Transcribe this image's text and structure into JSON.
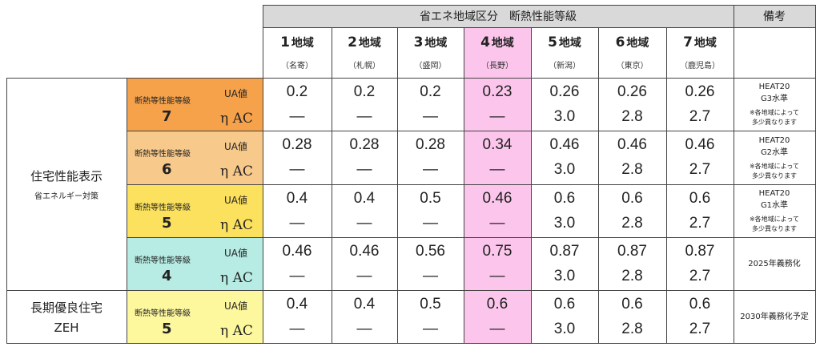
{
  "header": {
    "zone_title": "省エネ地域区分　断熱性能等級",
    "remarks_title": "備考"
  },
  "regions": [
    {
      "num": "1",
      "unit": "地域",
      "city": "（名寄）"
    },
    {
      "num": "2",
      "unit": "地域",
      "city": "（札幌）"
    },
    {
      "num": "3",
      "unit": "地域",
      "city": "（盛岡）"
    },
    {
      "num": "4",
      "unit": "地域",
      "city": "（長野）"
    },
    {
      "num": "5",
      "unit": "地域",
      "city": "（新潟）"
    },
    {
      "num": "6",
      "unit": "地域",
      "city": "（東京）"
    },
    {
      "num": "7",
      "unit": "地域",
      "city": "（鹿児島）"
    }
  ],
  "categories": [
    {
      "main": "住宅性能表示",
      "sub": "省エネルギー対策"
    },
    {
      "main": "長期優良住宅",
      "sub": "ZEH"
    }
  ],
  "rows": [
    {
      "grade_label": "断熱等性能等級",
      "grade": "7",
      "ua_label": "UA値",
      "eta_label": "η AC",
      "color": "#f6a24b",
      "ua": [
        "0.2",
        "0.2",
        "0.2",
        "0.23",
        "0.26",
        "0.26",
        "0.26"
      ],
      "eta": [
        "—",
        "—",
        "—",
        "—",
        "3.0",
        "2.8",
        "2.7"
      ],
      "note": [
        "HEAT20",
        "G3水準"
      ],
      "note_sub": [
        "※各地域によって",
        "多少異なります"
      ]
    },
    {
      "grade_label": "断熱等性能等級",
      "grade": "6",
      "ua_label": "UA値",
      "eta_label": "η AC",
      "color": "#f7c98b",
      "ua": [
        "0.28",
        "0.28",
        "0.28",
        "0.34",
        "0.46",
        "0.46",
        "0.46"
      ],
      "eta": [
        "—",
        "—",
        "—",
        "—",
        "3.0",
        "2.8",
        "2.7"
      ],
      "note": [
        "HEAT20",
        "G2水準"
      ],
      "note_sub": [
        "※各地域によって",
        "多少異なります"
      ]
    },
    {
      "grade_label": "断熱等性能等級",
      "grade": "5",
      "ua_label": "UA値",
      "eta_label": "η AC",
      "color": "#fce15e",
      "ua": [
        "0.4",
        "0.4",
        "0.5",
        "0.46",
        "0.6",
        "0.6",
        "0.6"
      ],
      "eta": [
        "—",
        "—",
        "—",
        "—",
        "3.0",
        "2.8",
        "2.7"
      ],
      "note": [
        "HEAT20",
        "G1水準"
      ],
      "note_sub": [
        "※各地域によって",
        "多少異なります"
      ]
    },
    {
      "grade_label": "断熱等性能等級",
      "grade": "4",
      "ua_label": "UA値",
      "eta_label": "η AC",
      "color": "#b6ece4",
      "ua": [
        "0.46",
        "0.46",
        "0.56",
        "0.75",
        "0.87",
        "0.87",
        "0.87"
      ],
      "eta": [
        "—",
        "—",
        "—",
        "—",
        "3.0",
        "2.8",
        "2.7"
      ],
      "note": [
        "2025年義務化"
      ],
      "note_sub": []
    },
    {
      "grade_label": "断熱等性能等級",
      "grade": "5",
      "ua_label": "UA値",
      "eta_label": "η AC",
      "color": "#fdf79e",
      "ua": [
        "0.4",
        "0.4",
        "0.5",
        "0.6",
        "0.6",
        "0.6",
        "0.6"
      ],
      "eta": [
        "—",
        "—",
        "—",
        "—",
        "3.0",
        "2.8",
        "2.7"
      ],
      "note": [
        "2030年義務化予定"
      ],
      "note_sub": []
    }
  ],
  "colors": {
    "highlight_column": "#fcc6ec",
    "header_bar": "#d9d9d9",
    "border": "#444444"
  }
}
